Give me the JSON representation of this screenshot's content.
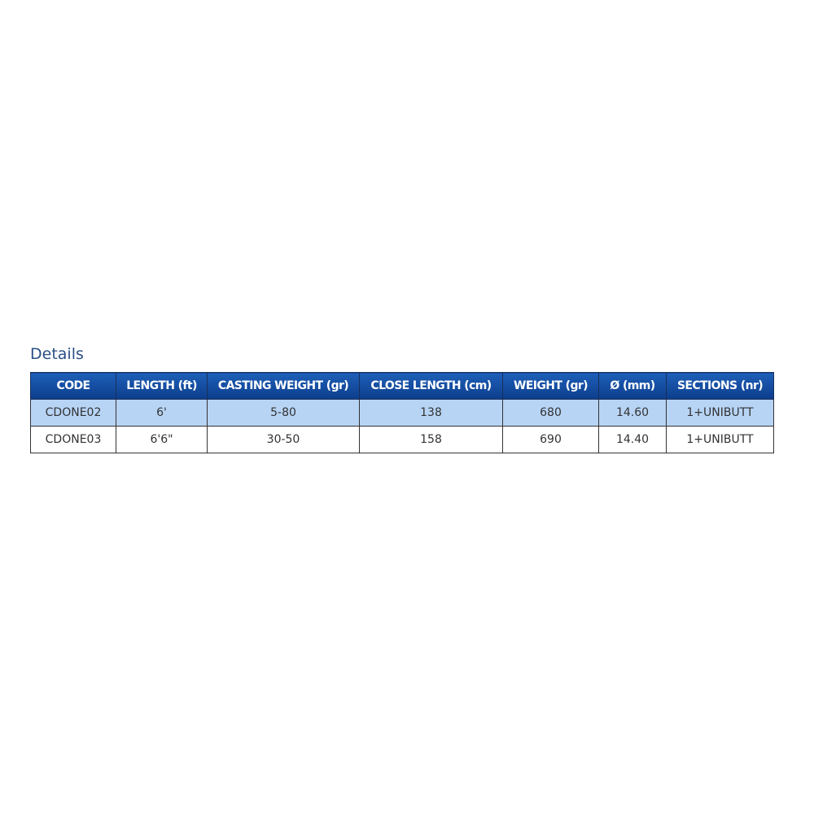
{
  "section_title": "Details",
  "table": {
    "headers": [
      "CODE",
      "LENGTH (ft)",
      "CASTING WEIGHT (gr)",
      "CLOSE LENGTH (cm)",
      "WEIGHT (gr)",
      "Ø (mm)",
      "SECTIONS (nr)"
    ],
    "rows": [
      [
        "CDONE02",
        "6'",
        "5-80",
        "138",
        "680",
        "14.60",
        "1+UNIBUTT"
      ],
      [
        "CDONE03",
        "6'6\"",
        "30-50",
        "158",
        "690",
        "14.40",
        "1+UNIBUTT"
      ]
    ]
  },
  "colors": {
    "header_bg": "#0d3d8c",
    "row_highlight": "#b7d4f5",
    "title": "#2b4f86"
  }
}
